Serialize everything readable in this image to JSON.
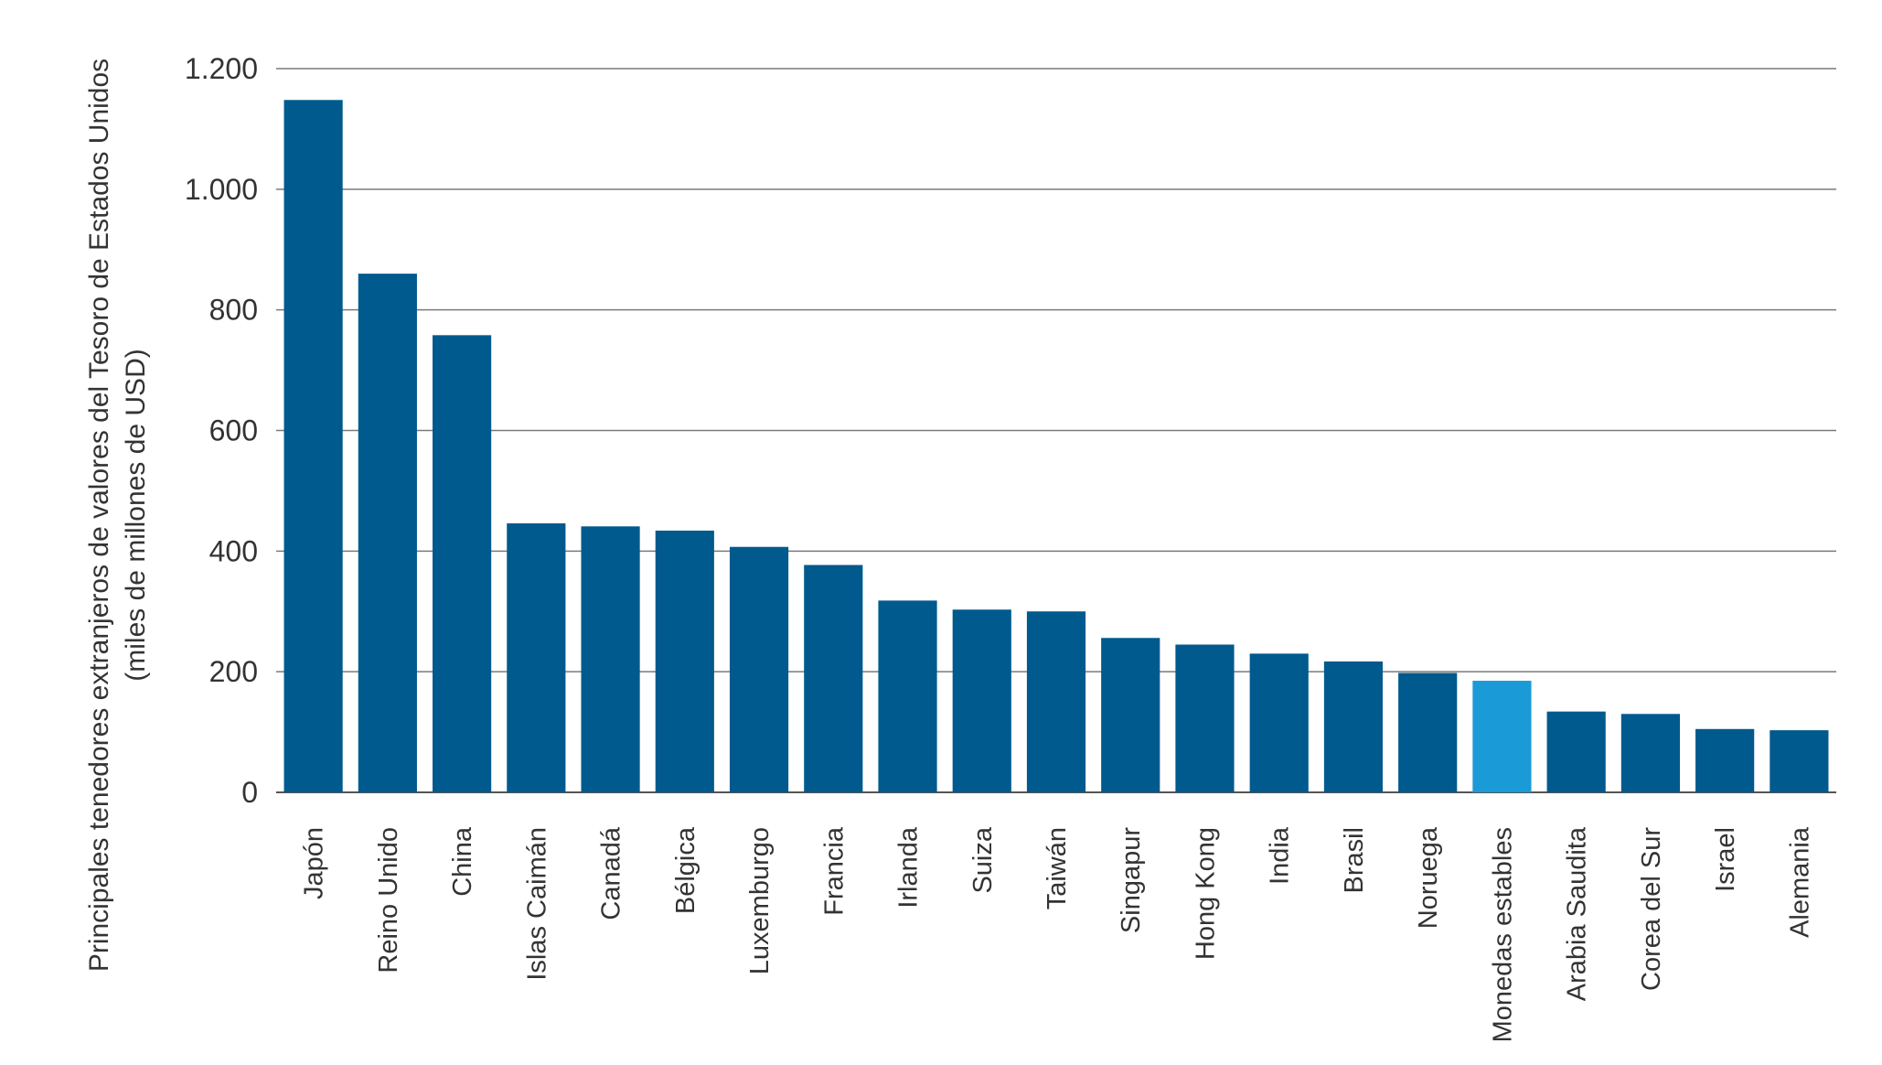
{
  "colors": {
    "bar": "#005a8e",
    "highlight": "#1a9ad6",
    "grid": "#7a7a7a",
    "text": "#333333"
  },
  "chart_data": {
    "type": "bar",
    "title": "",
    "ylabel_line1": "Principales tenedores extranjeros de valores del Tesoro de Estados Unidos",
    "ylabel_line2": "(miles de millones de USD)",
    "xlabel": "",
    "ylim": [
      0,
      1200
    ],
    "yticks": [
      0,
      200,
      400,
      600,
      800,
      1000,
      1200
    ],
    "ytick_labels": [
      "0",
      "200",
      "400",
      "600",
      "800",
      "1.000",
      "1.200"
    ],
    "grid": true,
    "legend": "none",
    "categories": [
      "Japón",
      "Reino Unido",
      "China",
      "Islas Caimán",
      "Canadá",
      "Bélgica",
      "Luxemburgo",
      "Francia",
      "Irlanda",
      "Suiza",
      "Taiwán",
      "Singapur",
      "Hong Kong",
      "India",
      "Brasil",
      "Noruega",
      "Monedas estables",
      "Arabia Saudita",
      "Corea del Sur",
      "Israel",
      "Alemania"
    ],
    "values": [
      1148,
      860,
      758,
      446,
      441,
      434,
      407,
      377,
      318,
      303,
      300,
      256,
      245,
      230,
      217,
      198,
      185,
      134,
      130,
      105,
      103
    ],
    "highlight_category": "Monedas estables"
  }
}
